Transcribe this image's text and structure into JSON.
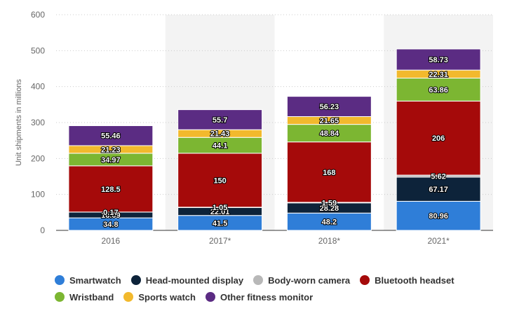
{
  "chart_data": {
    "type": "bar",
    "stacked": true,
    "title": "",
    "xlabel": "",
    "ylabel": "Unit shipments in millions",
    "ylim": [
      0,
      600
    ],
    "yticks": [
      0,
      100,
      200,
      300,
      400,
      500,
      600
    ],
    "grid": true,
    "legend_position": "bottom",
    "categories": [
      "2016",
      "2017*",
      "2018*",
      "2021*"
    ],
    "series": [
      {
        "name": "Smartwatch",
        "color": "#2f7ed8",
        "values": [
          34.8,
          41.5,
          48.2,
          80.96
        ],
        "labels": [
          "34.8",
          "41.5",
          "48.2",
          "80.96"
        ]
      },
      {
        "name": "Head-mounted display",
        "color": "#0d233a",
        "values": [
          16.09,
          22.01,
          28.28,
          67.17
        ],
        "labels": [
          "16.09",
          "22.01",
          "28.28",
          "67.17"
        ]
      },
      {
        "name": "Body-worn camera",
        "color": "#b8b8b8",
        "values": [
          0.17,
          1.05,
          1.59,
          5.62
        ],
        "labels": [
          "0.17",
          "1.05",
          "1.59",
          "5.62"
        ]
      },
      {
        "name": "Bluetooth headset",
        "color": "#a50a0a",
        "values": [
          128.5,
          150,
          168,
          206
        ],
        "labels": [
          "128.5",
          "150",
          "168",
          "206"
        ]
      },
      {
        "name": "Wristband",
        "color": "#7cb632",
        "values": [
          34.97,
          44.1,
          48.84,
          63.86
        ],
        "labels": [
          "34.97",
          "44.1",
          "48.84",
          "63.86"
        ]
      },
      {
        "name": "Sports watch",
        "color": "#f2b92d",
        "values": [
          21.23,
          21.43,
          21.65,
          22.31
        ],
        "labels": [
          "21.23",
          "21.43",
          "21.65",
          "22.31"
        ]
      },
      {
        "name": "Other fitness monitor",
        "color": "#5b2c83",
        "values": [
          55.46,
          55.7,
          56.23,
          58.73
        ],
        "labels": [
          "55.46",
          "55.7",
          "56.23",
          "58.73"
        ]
      }
    ],
    "highlight_color": "#f3f3f3"
  }
}
